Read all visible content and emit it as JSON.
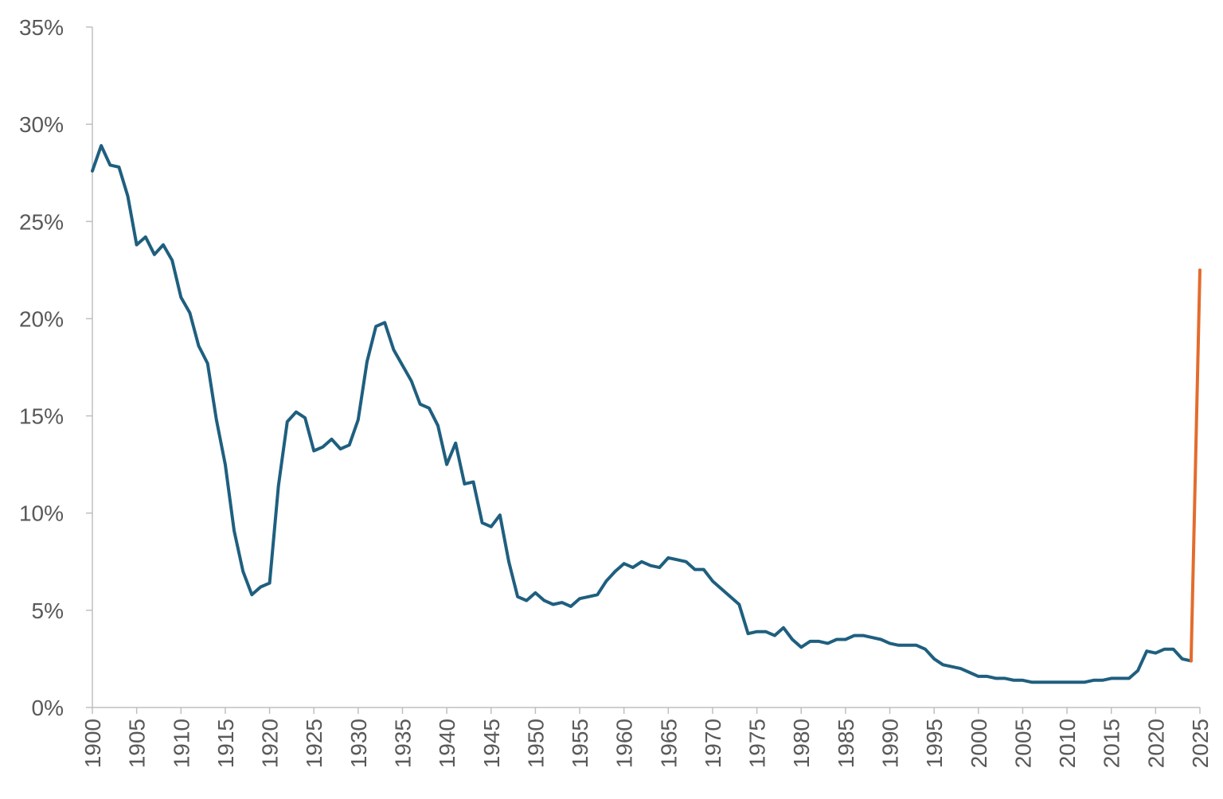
{
  "chart_data": {
    "type": "line",
    "title": "",
    "xlabel": "",
    "ylabel": "",
    "xlim": [
      1900,
      2025
    ],
    "ylim": [
      0,
      35
    ],
    "grid": false,
    "x_ticks": [
      1900,
      1905,
      1910,
      1915,
      1920,
      1925,
      1930,
      1935,
      1940,
      1945,
      1950,
      1955,
      1960,
      1965,
      1970,
      1975,
      1980,
      1985,
      1990,
      1995,
      2000,
      2005,
      2010,
      2015,
      2020,
      2025
    ],
    "x_tick_labels": [
      "1900",
      "1905",
      "1910",
      "1915",
      "1920",
      "1925",
      "1930",
      "1935",
      "1940",
      "1945",
      "1950",
      "1955",
      "1960",
      "1965",
      "1970",
      "1975",
      "1980",
      "1985",
      "1990",
      "1995",
      "2000",
      "2005",
      "2010",
      "2015",
      "2020",
      "2025"
    ],
    "y_ticks": [
      0,
      5,
      10,
      15,
      20,
      25,
      30,
      35
    ],
    "y_tick_labels": [
      "0%",
      "5%",
      "10%",
      "15%",
      "20%",
      "25%",
      "30%",
      "35%"
    ],
    "series": [
      {
        "color": "#1f5f7f",
        "x": [
          1900,
          1901,
          1902,
          1903,
          1904,
          1905,
          1906,
          1907,
          1908,
          1909,
          1910,
          1911,
          1912,
          1913,
          1914,
          1915,
          1916,
          1917,
          1918,
          1919,
          1920,
          1921,
          1922,
          1923,
          1924,
          1925,
          1926,
          1927,
          1928,
          1929,
          1930,
          1931,
          1932,
          1933,
          1934,
          1935,
          1936,
          1937,
          1938,
          1939,
          1940,
          1941,
          1942,
          1943,
          1944,
          1945,
          1946,
          1947,
          1948,
          1949,
          1950,
          1951,
          1952,
          1953,
          1954,
          1955,
          1956,
          1957,
          1958,
          1959,
          1960,
          1961,
          1962,
          1963,
          1964,
          1965,
          1966,
          1967,
          1968,
          1969,
          1970,
          1971,
          1972,
          1973,
          1974,
          1975,
          1976,
          1977,
          1978,
          1979,
          1980,
          1981,
          1982,
          1983,
          1984,
          1985,
          1986,
          1987,
          1988,
          1989,
          1990,
          1991,
          1992,
          1993,
          1994,
          1995,
          1996,
          1997,
          1998,
          1999,
          2000,
          2001,
          2002,
          2003,
          2004,
          2005,
          2006,
          2007,
          2008,
          2009,
          2010,
          2011,
          2012,
          2013,
          2014,
          2015,
          2016,
          2017,
          2018,
          2019,
          2020,
          2021,
          2022,
          2023,
          2024
        ],
        "y": [
          27.6,
          28.9,
          27.9,
          27.8,
          26.3,
          23.8,
          24.2,
          23.3,
          23.8,
          23.0,
          21.1,
          20.3,
          18.6,
          17.7,
          14.8,
          12.5,
          9.1,
          7.0,
          5.8,
          6.2,
          6.4,
          11.4,
          14.7,
          15.2,
          14.9,
          13.2,
          13.4,
          13.8,
          13.3,
          13.5,
          14.8,
          17.8,
          19.6,
          19.8,
          18.4,
          17.6,
          16.8,
          15.6,
          15.4,
          14.5,
          12.5,
          13.6,
          11.5,
          11.6,
          9.5,
          9.3,
          9.9,
          7.5,
          5.7,
          5.5,
          5.9,
          5.5,
          5.3,
          5.4,
          5.2,
          5.6,
          5.7,
          5.8,
          6.5,
          7.0,
          7.4,
          7.2,
          7.5,
          7.3,
          7.2,
          7.7,
          7.6,
          7.5,
          7.1,
          7.1,
          6.5,
          6.1,
          5.7,
          5.3,
          3.8,
          3.9,
          3.9,
          3.7,
          4.1,
          3.5,
          3.1,
          3.4,
          3.4,
          3.3,
          3.5,
          3.5,
          3.7,
          3.7,
          3.6,
          3.5,
          3.3,
          3.2,
          3.2,
          3.2,
          3.0,
          2.5,
          2.2,
          2.1,
          2.0,
          1.8,
          1.6,
          1.6,
          1.5,
          1.5,
          1.4,
          1.4,
          1.3,
          1.3,
          1.3,
          1.3,
          1.3,
          1.3,
          1.3,
          1.4,
          1.4,
          1.5,
          1.5,
          1.5,
          1.9,
          2.9,
          2.8,
          3.0,
          3.0,
          2.5,
          2.4
        ]
      },
      {
        "color": "#e36c2d",
        "x": [
          2024,
          2025
        ],
        "y": [
          2.4,
          22.5
        ]
      }
    ]
  }
}
